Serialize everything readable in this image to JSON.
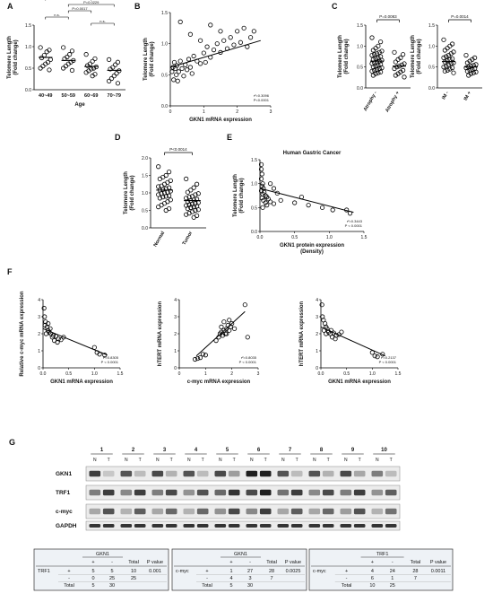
{
  "panel_labels": [
    "A",
    "B",
    "C",
    "D",
    "E",
    "F",
    "G"
  ],
  "chart_data": [
    {
      "id": "A",
      "type": "scatter",
      "categories": [
        "40~49",
        "50~59",
        "60~69",
        "70~79"
      ],
      "xlabel": "Age",
      "ylabel": [
        "Telomere Length",
        "(Fold change)"
      ],
      "ylim": [
        0,
        1.5
      ],
      "yticks": [
        "0.0",
        "0.5",
        "1.0",
        "1.5"
      ],
      "means": [
        0.75,
        0.68,
        0.54,
        0.45
      ],
      "points": [
        [
          0.98,
          0.92,
          0.88,
          0.8,
          0.74,
          0.7,
          0.64,
          0.6,
          0.55,
          0.5,
          0.46
        ],
        [
          0.98,
          0.9,
          0.82,
          0.76,
          0.72,
          0.68,
          0.64,
          0.6,
          0.55,
          0.5,
          0.45
        ],
        [
          0.82,
          0.72,
          0.66,
          0.6,
          0.56,
          0.53,
          0.5,
          0.48,
          0.44,
          0.4,
          0.36,
          0.32
        ],
        [
          0.7,
          0.64,
          0.58,
          0.52,
          0.48,
          0.44,
          0.38,
          0.32,
          0.26,
          0.2,
          0.15
        ]
      ],
      "brackets": [
        {
          "from": 0,
          "to": 3,
          "label": "P=0.0036"
        },
        {
          "from": 0,
          "to": 2,
          "label": "P=0.0015"
        },
        {
          "from": 1,
          "to": 3,
          "label": "P=0.0229"
        },
        {
          "from": 1,
          "to": 2,
          "label": "P=0.0017"
        },
        {
          "from": 0,
          "to": 1,
          "label": "n.s."
        },
        {
          "from": 2,
          "to": 3,
          "label": "n.s."
        }
      ]
    },
    {
      "id": "B",
      "type": "scatter",
      "xlabel": "GKN1 mRNA expression",
      "ylabel": [
        "Telomere Length",
        "(Fold change)"
      ],
      "xlim": [
        0,
        3
      ],
      "ylim": [
        0,
        1.5
      ],
      "xticks": [
        "0",
        "1",
        "2",
        "3"
      ],
      "yticks": [
        "0.0",
        "0.5",
        "1.0",
        "1.5"
      ],
      "annotation": [
        "r²=0.3096",
        "P<0.0001"
      ],
      "fit": [
        [
          0,
          0.62
        ],
        [
          2.7,
          1.05
        ]
      ],
      "points": [
        [
          0.05,
          0.55
        ],
        [
          0.08,
          0.62
        ],
        [
          0.1,
          0.42
        ],
        [
          0.12,
          0.7
        ],
        [
          0.15,
          0.6
        ],
        [
          0.18,
          0.5
        ],
        [
          0.2,
          0.65
        ],
        [
          0.22,
          0.4
        ],
        [
          0.25,
          0.55
        ],
        [
          0.3,
          0.72
        ],
        [
          0.35,
          0.6
        ],
        [
          0.4,
          0.48
        ],
        [
          0.45,
          0.66
        ],
        [
          0.5,
          0.58
        ],
        [
          0.55,
          0.75
        ],
        [
          0.6,
          0.62
        ],
        [
          0.65,
          0.52
        ],
        [
          0.7,
          0.8
        ],
        [
          0.8,
          0.72
        ],
        [
          0.9,
          0.68
        ],
        [
          1.0,
          0.85
        ],
        [
          1.05,
          0.7
        ],
        [
          1.1,
          0.95
        ],
        [
          1.2,
          0.78
        ],
        [
          1.3,
          0.9
        ],
        [
          1.4,
          1.0
        ],
        [
          1.5,
          0.86
        ],
        [
          1.6,
          1.05
        ],
        [
          1.7,
          0.92
        ],
        [
          1.8,
          1.1
        ],
        [
          1.9,
          0.98
        ],
        [
          2.0,
          1.2
        ],
        [
          2.1,
          1.02
        ],
        [
          2.2,
          1.25
        ],
        [
          2.3,
          0.95
        ],
        [
          2.4,
          1.1
        ],
        [
          0.3,
          1.35
        ],
        [
          0.6,
          1.15
        ],
        [
          1.2,
          1.3
        ],
        [
          1.5,
          1.2
        ],
        [
          2.5,
          1.2
        ],
        [
          0.9,
          1.05
        ]
      ]
    },
    {
      "id": "C1",
      "type": "scatter",
      "categories": [
        "Atrophy -",
        "Atrophy +"
      ],
      "ylabel": [
        "Telomere Length",
        "(Fold change)"
      ],
      "ylim": [
        0,
        1.5
      ],
      "yticks": [
        "0.0",
        "0.5",
        "1.0",
        "1.5"
      ],
      "pvalue": "P=0.0083",
      "means": [
        0.64,
        0.52
      ],
      "points": [
        [
          1.2,
          1.1,
          1.0,
          0.95,
          0.9,
          0.88,
          0.85,
          0.82,
          0.8,
          0.78,
          0.75,
          0.72,
          0.7,
          0.68,
          0.66,
          0.64,
          0.62,
          0.6,
          0.58,
          0.56,
          0.54,
          0.52,
          0.5,
          0.48,
          0.46,
          0.44,
          0.42,
          0.4,
          0.38,
          0.36,
          0.34,
          0.3
        ],
        [
          0.85,
          0.8,
          0.72,
          0.68,
          0.62,
          0.58,
          0.55,
          0.52,
          0.5,
          0.46,
          0.42,
          0.38,
          0.34,
          0.3,
          0.26
        ]
      ]
    },
    {
      "id": "C2",
      "type": "scatter",
      "categories": [
        "IM -",
        "IM +"
      ],
      "ylabel": [
        "Telomere Length",
        "(Fold change)"
      ],
      "ylim": [
        0,
        1.5
      ],
      "yticks": [
        "0.0",
        "0.5",
        "1.0",
        "1.5"
      ],
      "pvalue": "P=0.0014",
      "means": [
        0.63,
        0.5
      ],
      "points": [
        [
          1.15,
          1.05,
          1.0,
          0.95,
          0.9,
          0.86,
          0.82,
          0.78,
          0.75,
          0.72,
          0.7,
          0.68,
          0.65,
          0.62,
          0.6,
          0.58,
          0.55,
          0.52,
          0.5,
          0.48,
          0.45,
          0.42,
          0.4,
          0.36
        ],
        [
          0.78,
          0.72,
          0.68,
          0.64,
          0.6,
          0.56,
          0.54,
          0.52,
          0.5,
          0.48,
          0.46,
          0.44,
          0.42,
          0.4,
          0.38,
          0.36,
          0.34,
          0.3
        ]
      ]
    },
    {
      "id": "D",
      "type": "scatter",
      "categories": [
        "Normal",
        "Tumor"
      ],
      "ylabel": [
        "Telomere Length",
        "(Fold change)"
      ],
      "ylim": [
        0,
        2.0
      ],
      "yticks": [
        "0.0",
        "0.5",
        "1.0",
        "1.5",
        "2.0"
      ],
      "pvalue": "P<0.0014",
      "means": [
        1.08,
        0.78
      ],
      "points": [
        [
          1.75,
          1.6,
          1.5,
          1.45,
          1.4,
          1.35,
          1.3,
          1.25,
          1.2,
          1.18,
          1.15,
          1.12,
          1.1,
          1.08,
          1.05,
          1.02,
          1.0,
          0.98,
          0.95,
          0.92,
          0.9,
          0.88,
          0.85,
          0.8,
          0.75,
          0.7,
          0.65,
          0.6,
          0.55,
          0.5
        ],
        [
          1.4,
          1.25,
          1.15,
          1.08,
          1.02,
          0.98,
          0.95,
          0.9,
          0.88,
          0.85,
          0.82,
          0.8,
          0.78,
          0.75,
          0.72,
          0.7,
          0.68,
          0.66,
          0.64,
          0.62,
          0.6,
          0.58,
          0.55,
          0.52,
          0.5,
          0.46,
          0.42,
          0.38,
          0.35,
          0.3
        ]
      ]
    },
    {
      "id": "E",
      "type": "scatter",
      "title": "Human Gastric Cancer",
      "xlabel": [
        "GKN1 protein expression",
        "(Density)"
      ],
      "ylabel": [
        "Telomere Length",
        "(Fold change)"
      ],
      "xlim": [
        0,
        1.5
      ],
      "ylim": [
        0,
        1.5
      ],
      "xticks": [
        "0.0",
        "0.5",
        "1.0",
        "1.5"
      ],
      "yticks": [
        "0.0",
        "0.5",
        "1.0",
        "1.5"
      ],
      "annotation": [
        "r²=0.3443",
        "P < 0.0001"
      ],
      "fit": [
        [
          0,
          0.9
        ],
        [
          1.35,
          0.4
        ]
      ],
      "points": [
        [
          0.02,
          1.4
        ],
        [
          0.02,
          1.3
        ],
        [
          0.03,
          1.2
        ],
        [
          0.02,
          1.1
        ],
        [
          0.04,
          1.0
        ],
        [
          0.03,
          0.95
        ],
        [
          0.05,
          0.9
        ],
        [
          0.02,
          0.85
        ],
        [
          0.06,
          0.82
        ],
        [
          0.04,
          0.78
        ],
        [
          0.08,
          0.75
        ],
        [
          0.1,
          0.72
        ],
        [
          0.03,
          0.7
        ],
        [
          0.12,
          0.68
        ],
        [
          0.05,
          0.65
        ],
        [
          0.15,
          0.62
        ],
        [
          0.08,
          0.6
        ],
        [
          0.2,
          0.58
        ],
        [
          0.1,
          0.55
        ],
        [
          0.04,
          0.5
        ],
        [
          0.25,
          0.8
        ],
        [
          0.3,
          0.65
        ],
        [
          0.5,
          0.6
        ],
        [
          0.6,
          0.72
        ],
        [
          0.7,
          0.55
        ],
        [
          0.9,
          0.5
        ],
        [
          1.05,
          0.45
        ],
        [
          1.25,
          0.45
        ],
        [
          1.3,
          0.38
        ],
        [
          0.15,
          1.0
        ],
        [
          0.2,
          0.9
        ]
      ]
    },
    {
      "id": "F1",
      "type": "scatter",
      "xlabel": "GKN1 mRNA expression",
      "ylabel": [
        "Relative c-myc mRNA expression"
      ],
      "xlim": [
        0,
        1.5
      ],
      "ylim": [
        0,
        4
      ],
      "xticks": [
        "0.0",
        "0.5",
        "1.0",
        "1.5"
      ],
      "yticks": [
        "0",
        "1",
        "2",
        "3",
        "4"
      ],
      "annotation": [
        "r²=0.8305",
        "P < 0.0001"
      ],
      "fit": [
        [
          0,
          2.3
        ],
        [
          1.25,
          0.75
        ]
      ],
      "points": [
        [
          0.02,
          3.5
        ],
        [
          0.03,
          3.0
        ],
        [
          0.05,
          2.7
        ],
        [
          0.04,
          2.5
        ],
        [
          0.08,
          2.4
        ],
        [
          0.1,
          2.2
        ],
        [
          0.12,
          2.1
        ],
        [
          0.06,
          2.0
        ],
        [
          0.15,
          2.0
        ],
        [
          0.2,
          1.9
        ],
        [
          0.18,
          1.8
        ],
        [
          0.25,
          1.85
        ],
        [
          0.3,
          1.7
        ],
        [
          0.22,
          1.6
        ],
        [
          0.35,
          1.65
        ],
        [
          0.4,
          1.8
        ],
        [
          0.28,
          1.5
        ],
        [
          1.0,
          1.2
        ],
        [
          1.05,
          0.9
        ],
        [
          1.1,
          0.8
        ],
        [
          1.2,
          0.75
        ],
        [
          0.1,
          2.6
        ],
        [
          0.14,
          2.3
        ]
      ]
    },
    {
      "id": "F2",
      "type": "scatter",
      "xlabel": "c-myc mRNA expression",
      "ylabel": [
        "hTERT mRNA expression"
      ],
      "xlim": [
        0,
        3
      ],
      "ylim": [
        0,
        4
      ],
      "xticks": [
        "0",
        "1",
        "2",
        "3"
      ],
      "yticks": [
        "0",
        "1",
        "2",
        "3",
        "4"
      ],
      "annotation": [
        "r²=0.8035",
        "P < 0.0001"
      ],
      "fit": [
        [
          0.65,
          0.7
        ],
        [
          2.5,
          3.3
        ]
      ],
      "points": [
        [
          0.6,
          0.5
        ],
        [
          0.7,
          0.55
        ],
        [
          0.8,
          0.6
        ],
        [
          0.9,
          0.8
        ],
        [
          1.0,
          0.75
        ],
        [
          1.4,
          1.6
        ],
        [
          1.5,
          1.8
        ],
        [
          1.55,
          2.0
        ],
        [
          1.6,
          2.1
        ],
        [
          1.65,
          1.9
        ],
        [
          1.7,
          2.2
        ],
        [
          1.75,
          2.0
        ],
        [
          1.8,
          2.3
        ],
        [
          1.85,
          2.5
        ],
        [
          1.9,
          2.2
        ],
        [
          1.95,
          2.4
        ],
        [
          2.0,
          2.6
        ],
        [
          1.7,
          2.7
        ],
        [
          1.8,
          2.0
        ],
        [
          2.1,
          2.3
        ],
        [
          2.5,
          3.7
        ],
        [
          2.6,
          1.8
        ],
        [
          1.6,
          2.4
        ],
        [
          1.9,
          2.8
        ]
      ]
    },
    {
      "id": "F3",
      "type": "scatter",
      "xlabel": "GKN1 mRNA expression",
      "ylabel": [
        "hTERT mRNA expression"
      ],
      "xlim": [
        0,
        1.5
      ],
      "ylim": [
        0,
        4
      ],
      "xticks": [
        "0.0",
        "0.5",
        "1.0",
        "1.5"
      ],
      "yticks": [
        "0",
        "1",
        "2",
        "3",
        "4"
      ],
      "annotation": [
        "r²=0.2137",
        "P < 0.0001"
      ],
      "fit": [
        [
          0,
          2.4
        ],
        [
          1.25,
          0.7
        ]
      ],
      "points": [
        [
          0.02,
          3.7
        ],
        [
          0.03,
          3.0
        ],
        [
          0.05,
          2.8
        ],
        [
          0.08,
          2.6
        ],
        [
          0.1,
          2.4
        ],
        [
          0.12,
          2.3
        ],
        [
          0.06,
          2.2
        ],
        [
          0.15,
          2.1
        ],
        [
          0.2,
          2.2
        ],
        [
          0.18,
          2.0
        ],
        [
          0.25,
          2.05
        ],
        [
          0.3,
          1.9
        ],
        [
          0.22,
          1.8
        ],
        [
          0.35,
          1.95
        ],
        [
          0.4,
          2.1
        ],
        [
          0.28,
          1.7
        ],
        [
          0.1,
          2.0
        ],
        [
          1.0,
          0.9
        ],
        [
          1.05,
          0.7
        ],
        [
          1.1,
          0.65
        ],
        [
          1.2,
          0.8
        ]
      ]
    }
  ],
  "blot": {
    "lanes": [
      "1",
      "2",
      "3",
      "4",
      "5",
      "6",
      "7",
      "8",
      "9",
      "10"
    ],
    "nt": [
      "N",
      "T"
    ],
    "rows": [
      {
        "label": "GKN1",
        "N": [
          0.8,
          0.7,
          0.75,
          0.7,
          0.75,
          0.95,
          0.7,
          0.7,
          0.75,
          0.5
        ],
        "T": [
          0.15,
          0.2,
          0.25,
          0.2,
          0.35,
          0.95,
          0.2,
          0.25,
          0.3,
          0.2
        ]
      },
      {
        "label": "TRF1",
        "N": [
          0.5,
          0.45,
          0.5,
          0.4,
          0.6,
          0.75,
          0.55,
          0.45,
          0.5,
          0.4
        ],
        "T": [
          0.8,
          0.8,
          0.75,
          0.7,
          0.85,
          0.95,
          0.8,
          0.75,
          0.8,
          0.65
        ]
      },
      {
        "label": "c-myc",
        "N": [
          0.3,
          0.25,
          0.3,
          0.25,
          0.4,
          0.45,
          0.3,
          0.3,
          0.35,
          0.25
        ],
        "T": [
          0.7,
          0.65,
          0.6,
          0.6,
          0.75,
          0.8,
          0.65,
          0.6,
          0.7,
          0.55
        ]
      },
      {
        "label": "GAPDH",
        "N": [
          0.85,
          0.85,
          0.85,
          0.85,
          0.85,
          0.85,
          0.85,
          0.85,
          0.85,
          0.85
        ],
        "T": [
          0.85,
          0.85,
          0.85,
          0.85,
          0.85,
          0.85,
          0.85,
          0.85,
          0.85,
          0.85
        ]
      }
    ]
  },
  "tables": [
    {
      "header": "GKN1",
      "rowvar": "TRF1",
      "cols": [
        "",
        "",
        "+",
        "-",
        "Total",
        "P value"
      ],
      "rows": [
        [
          "TRF1",
          "+",
          "5",
          "5",
          "10",
          "0.001"
        ],
        [
          "",
          "-",
          "0",
          "25",
          "25",
          ""
        ],
        [
          "",
          "Total",
          "5",
          "30",
          "",
          ""
        ]
      ]
    },
    {
      "header": "GKN1",
      "rowvar": "c-myc",
      "cols": [
        "",
        "",
        "+",
        "-",
        "Total",
        "P value"
      ],
      "rows": [
        [
          "c-myc",
          "+",
          "1",
          "27",
          "28",
          "0.0025"
        ],
        [
          "",
          "-",
          "4",
          "3",
          "7",
          ""
        ],
        [
          "",
          "Total",
          "5",
          "30",
          "",
          ""
        ]
      ]
    },
    {
      "header": "TRF1",
      "rowvar": "c-myc",
      "cols": [
        "",
        "",
        "+",
        "-",
        "Total",
        "P value"
      ],
      "rows": [
        [
          "c-myc",
          "+",
          "4",
          "24",
          "28",
          "0.0011"
        ],
        [
          "",
          "-",
          "6",
          "1",
          "7",
          ""
        ],
        [
          "",
          "Total",
          "10",
          "25",
          "",
          ""
        ]
      ]
    }
  ]
}
